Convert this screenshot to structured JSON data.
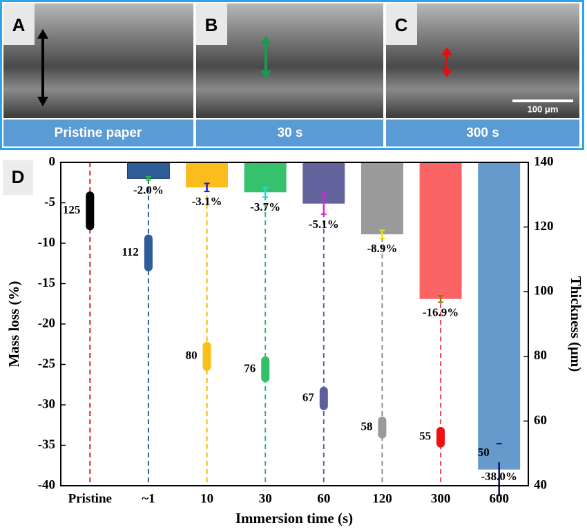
{
  "panels": [
    {
      "label": "A",
      "caption": "Pristine paper"
    },
    {
      "label": "B",
      "caption": "30 s"
    },
    {
      "label": "C",
      "caption": "300 s"
    }
  ],
  "scale_bar": "100 μm",
  "chart_data": {
    "type": "bar",
    "panel_label": "D",
    "x_label": "Immersion time (s)",
    "y_label": "Mass loss (%)",
    "y2_label": "Thickness (μm)",
    "categories": [
      "Pristine",
      "~1",
      "10",
      "30",
      "60",
      "120",
      "300",
      "600"
    ],
    "guide_colors": [
      "#d42020",
      "#2e5d9a",
      "#f4b400",
      "#2fb860",
      "#5f5f9e",
      "#8c8c8c",
      "#e84848",
      "#4f86c6"
    ],
    "series": [
      {
        "name": "Mass loss",
        "values": [
          null,
          -2.0,
          -3.1,
          -3.7,
          -5.1,
          -8.9,
          -16.9,
          -38.0
        ],
        "value_labels": [
          null,
          "-2.0%",
          "-3.1%",
          "-3.7%",
          "-5.1%",
          "-8.9%",
          "-16.9%",
          "-38.0%"
        ],
        "errors": [
          null,
          0.2,
          0.5,
          0.6,
          1.3,
          0.5,
          0.4,
          3.2
        ],
        "colors": [
          null,
          "#2e5d9a",
          "#fbbd1e",
          "#36c26c",
          "#63639e",
          "#9a9a9a",
          "#fa6464",
          "#6699cc"
        ],
        "error_colors": [
          null,
          "#2fbf3f",
          "#1a1acc",
          "#22d8e8",
          "#e020e0",
          "#e8e020",
          "#8a7a10",
          "#101060"
        ]
      },
      {
        "name": "Thickness",
        "axis": "y2",
        "values": [
          125,
          112,
          80,
          76,
          67,
          58,
          55,
          50
        ],
        "errors": [
          6,
          5.7,
          4.5,
          4,
          3.6,
          3.4,
          3.2,
          2.8
        ],
        "colors": [
          "#000000",
          "#2e5d9a",
          "#f9c01b",
          "#33c06a",
          "#5f5f9e",
          "#9a9a9a",
          "#ee1111",
          "#6699cc"
        ]
      }
    ],
    "ylim": [
      -40,
      0
    ],
    "yticks": [
      0,
      -5,
      -10,
      -15,
      -20,
      -25,
      -30,
      -35,
      -40
    ],
    "y2lim": [
      40,
      140
    ],
    "y2ticks": [
      40,
      60,
      80,
      100,
      120,
      140
    ]
  }
}
